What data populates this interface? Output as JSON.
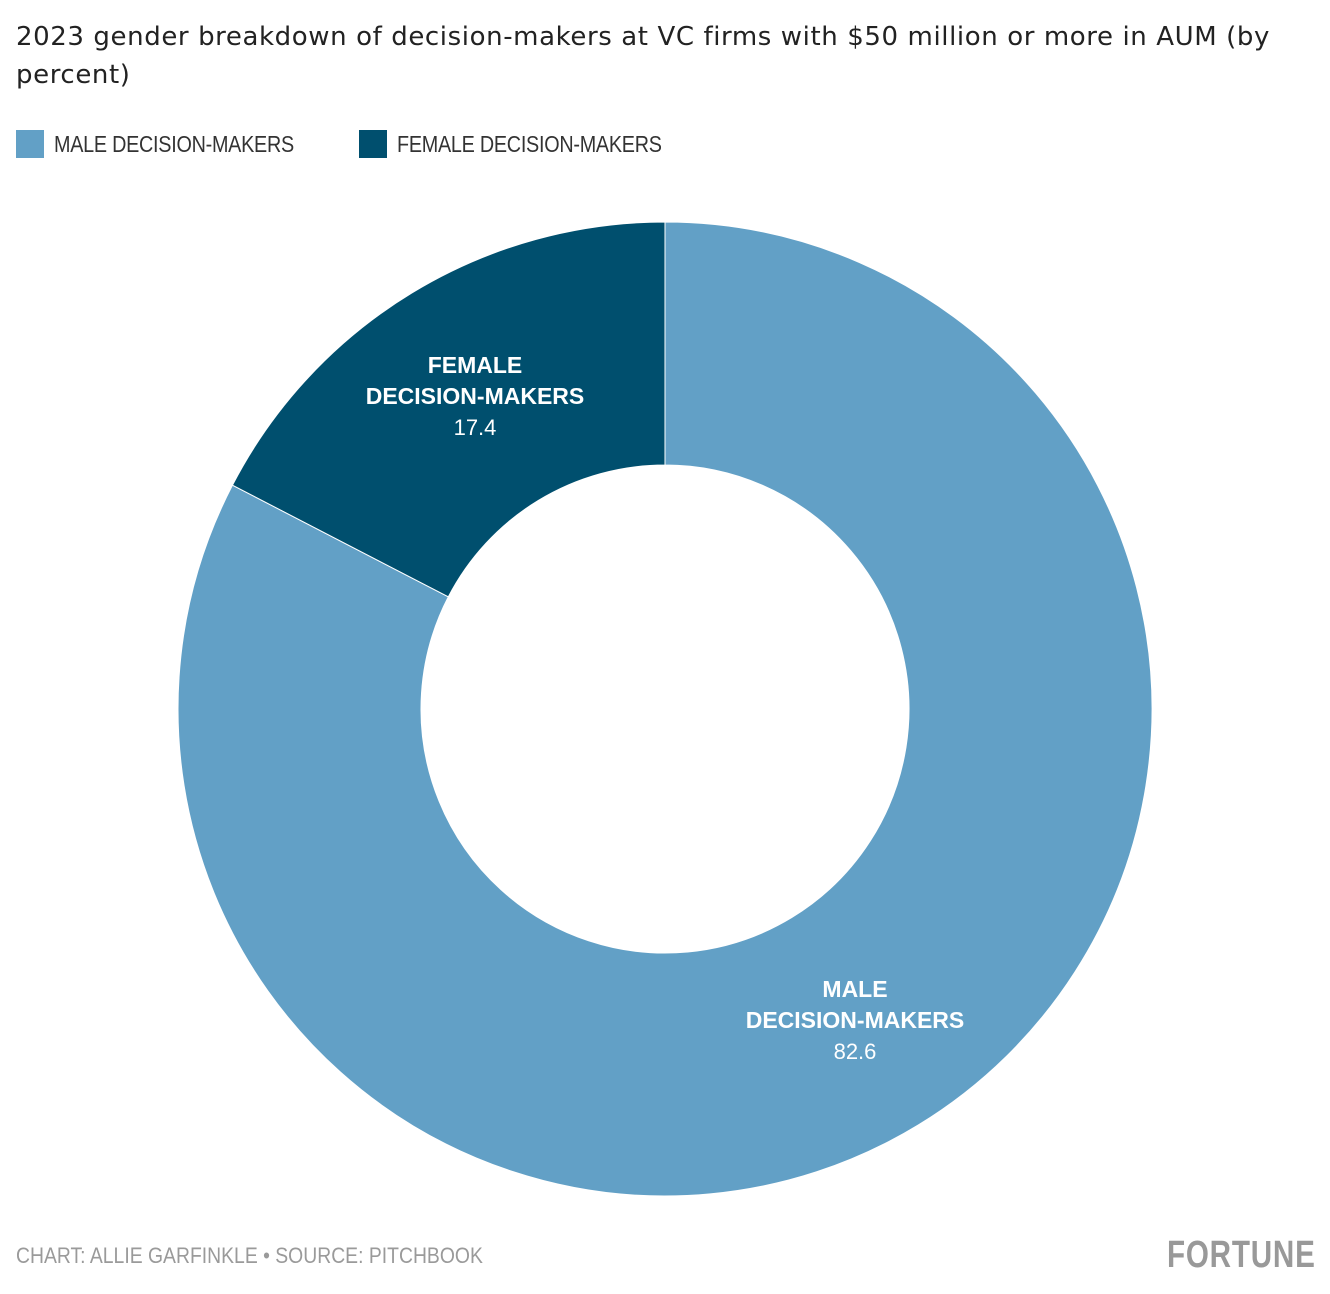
{
  "chart_data": {
    "type": "pie",
    "subtype": "donut",
    "title": "2023 gender breakdown of decision-makers at VC firms with $50 million or more in AUM (by percent)",
    "legend_position": "top-left",
    "slices": [
      {
        "label": "MALE DECISION-MAKERS",
        "value": 82.6,
        "value_text": "82.6",
        "color": "#62a0c6",
        "label_lines": [
          "MALE",
          "DECISION-MAKERS"
        ]
      },
      {
        "label": "FEMALE DECISION-MAKERS",
        "value": 17.4,
        "value_text": "17.4",
        "color": "#004f6e",
        "label_lines": [
          "FEMALE",
          "DECISION-MAKERS"
        ]
      }
    ]
  },
  "legend": {
    "items": [
      {
        "label": "MALE DECISION-MAKERS",
        "color": "#62a0c6"
      },
      {
        "label": "FEMALE DECISION-MAKERS",
        "color": "#004f6e"
      }
    ]
  },
  "footer": {
    "credit": "CHART: ALLIE GARFINKLE • SOURCE: PITCHBOOK",
    "logo": "FORTUNE"
  }
}
